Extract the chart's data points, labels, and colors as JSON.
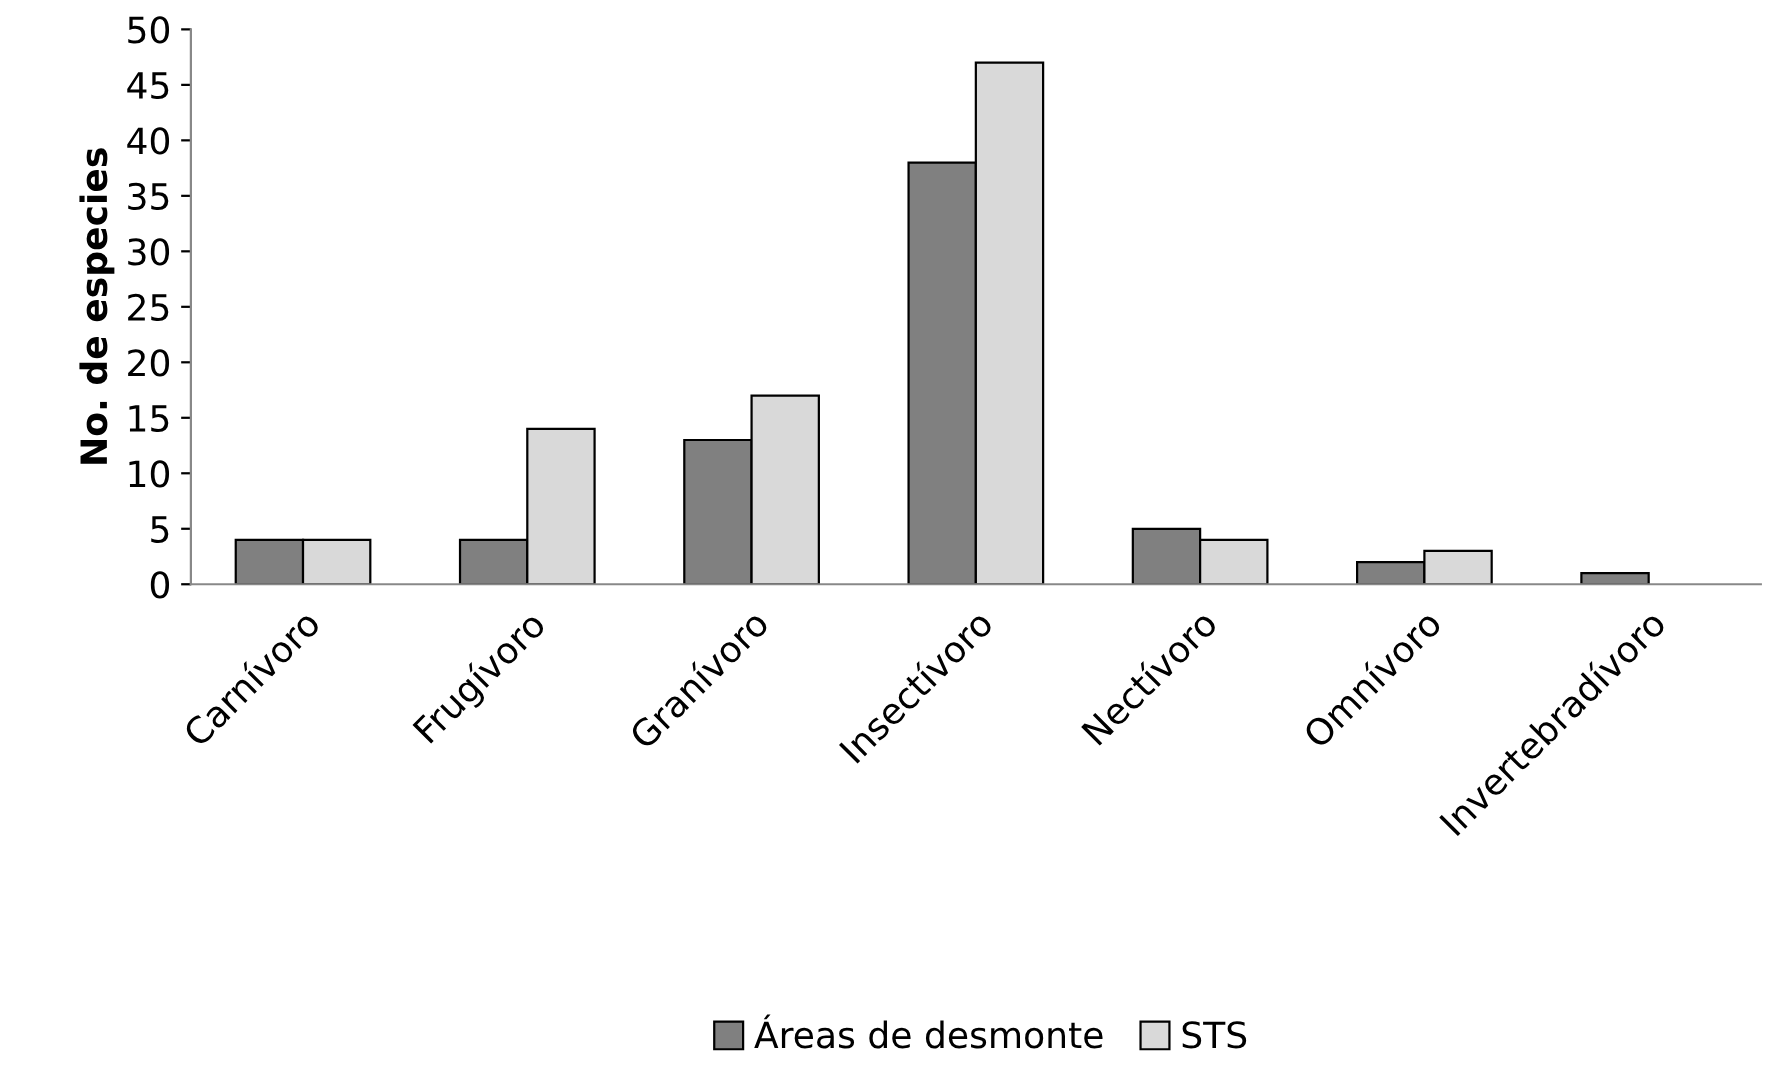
{
  "chart_data": {
    "type": "bar",
    "ylabel": "No. de especies",
    "categories": [
      "Carnívoro",
      "Frugívoro",
      "Granívoro",
      "Insectívoro",
      "Nectívoro",
      "Omnívoro",
      "Invertebradívoro"
    ],
    "series": [
      {
        "name": "Áreas de desmonte",
        "color": "#808080",
        "values": [
          4,
          4,
          13,
          38,
          5,
          2,
          1
        ]
      },
      {
        "name": "STS",
        "color": "#d9d9d9",
        "values": [
          4,
          14,
          17,
          47,
          4,
          3,
          null
        ]
      }
    ],
    "ylim": [
      0,
      50
    ],
    "yticks": [
      0,
      5,
      10,
      15,
      20,
      25,
      30,
      35,
      40,
      45,
      50
    ],
    "grid": false,
    "legend": "bottom"
  }
}
